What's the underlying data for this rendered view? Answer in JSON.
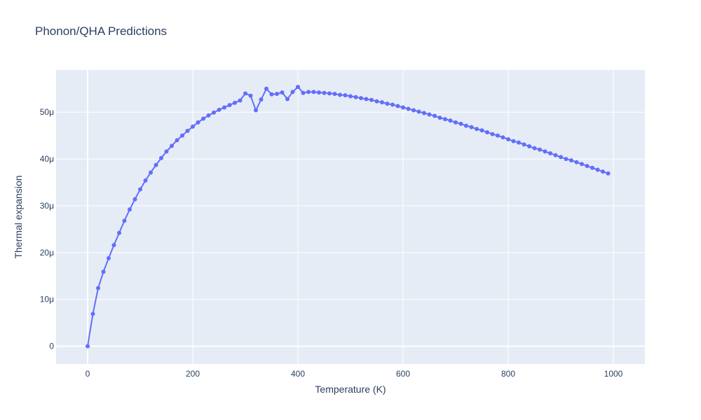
{
  "chart_data": {
    "type": "line",
    "title": "Phonon/QHA Predictions",
    "xlabel": "Temperature (K)",
    "ylabel": "Thermal expansion",
    "xlim": [
      -60,
      1060
    ],
    "ylim": [
      -3.8e-06,
      5.9e-05
    ],
    "x_ticks": [
      0,
      200,
      400,
      600,
      800,
      1000
    ],
    "x_tick_labels": [
      "0",
      "200",
      "400",
      "600",
      "800",
      "1000"
    ],
    "y_ticks": [
      0,
      1e-05,
      2e-05,
      3e-05,
      4e-05,
      5e-05
    ],
    "y_tick_labels": [
      "0",
      "10μ",
      "20μ",
      "30μ",
      "40μ",
      "50μ"
    ],
    "grid": true,
    "colors": {
      "series": "#636efa",
      "plot_bg": "#e5ecf6",
      "grid": "#ffffff",
      "text": "#2a3f5f"
    },
    "series": [
      {
        "x": [
          0,
          10,
          20,
          30,
          40,
          50,
          60,
          70,
          80,
          90,
          100,
          110,
          120,
          130,
          140,
          150,
          160,
          170,
          180,
          190,
          200,
          210,
          220,
          230,
          240,
          250,
          260,
          270,
          280,
          290,
          300,
          310,
          320,
          330,
          340,
          350,
          360,
          370,
          380,
          390,
          400,
          410,
          420,
          430,
          440,
          450,
          460,
          470,
          480,
          490,
          500,
          510,
          520,
          530,
          540,
          550,
          560,
          570,
          580,
          590,
          600,
          610,
          620,
          630,
          640,
          650,
          660,
          670,
          680,
          690,
          700,
          710,
          720,
          730,
          740,
          750,
          760,
          770,
          780,
          790,
          800,
          810,
          820,
          830,
          840,
          850,
          860,
          870,
          880,
          890,
          900,
          910,
          920,
          930,
          940,
          950,
          960,
          970,
          980,
          990
        ],
        "y": [
          0,
          6.9e-06,
          1.24e-05,
          1.59e-05,
          1.88e-05,
          2.16e-05,
          2.42e-05,
          2.68e-05,
          2.92e-05,
          3.14e-05,
          3.35e-05,
          3.54e-05,
          3.71e-05,
          3.87e-05,
          4.02e-05,
          4.16e-05,
          4.28e-05,
          4.4e-05,
          4.5e-05,
          4.6e-05,
          4.69e-05,
          4.78e-05,
          4.86e-05,
          4.93e-05,
          4.99e-05,
          5.05e-05,
          5.1e-05,
          5.15e-05,
          5.2e-05,
          5.25e-05,
          5.4e-05,
          5.35e-05,
          5.04e-05,
          5.27e-05,
          5.5e-05,
          5.38e-05,
          5.39e-05,
          5.42e-05,
          5.28e-05,
          5.43e-05,
          5.54e-05,
          5.41e-05,
          5.43e-05,
          5.43e-05,
          5.42e-05,
          5.41e-05,
          5.4e-05,
          5.39e-05,
          5.37e-05,
          5.36e-05,
          5.34e-05,
          5.32e-05,
          5.3e-05,
          5.28e-05,
          5.26e-05,
          5.23e-05,
          5.21e-05,
          5.18e-05,
          5.16e-05,
          5.13e-05,
          5.1e-05,
          5.07e-05,
          5.04e-05,
          5.01e-05,
          4.98e-05,
          4.95e-05,
          4.92e-05,
          4.88e-05,
          4.85e-05,
          4.82e-05,
          4.78e-05,
          4.75e-05,
          4.71e-05,
          4.68e-05,
          4.64e-05,
          4.61e-05,
          4.57e-05,
          4.53e-05,
          4.5e-05,
          4.46e-05,
          4.42e-05,
          4.38e-05,
          4.35e-05,
          4.31e-05,
          4.27e-05,
          4.23e-05,
          4.2e-05,
          4.16e-05,
          4.12e-05,
          4.08e-05,
          4.04e-05,
          4e-05,
          3.97e-05,
          3.93e-05,
          3.89e-05,
          3.85e-05,
          3.81e-05,
          3.77e-05,
          3.73e-05,
          3.69e-05
        ]
      }
    ]
  }
}
